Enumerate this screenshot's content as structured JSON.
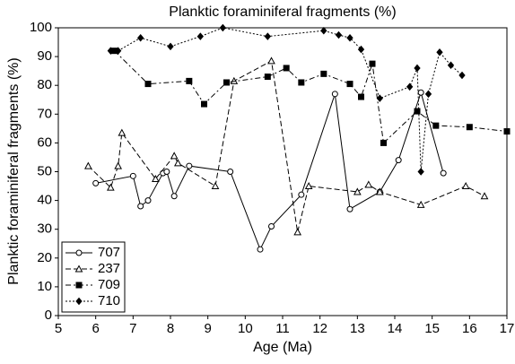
{
  "chart_data": {
    "type": "line",
    "title": "Planktic foraminiferal fragments (%)",
    "x_label": "Age (Ma)",
    "y_label": "Planktic foraminiferal fragments (%)",
    "xlim": [
      5,
      17
    ],
    "xticks": [
      5,
      6,
      7,
      8,
      9,
      10,
      11,
      12,
      13,
      14,
      15,
      16,
      17
    ],
    "ylim": [
      0,
      100
    ],
    "yticks": [
      0,
      10,
      20,
      30,
      40,
      50,
      60,
      70,
      80,
      90,
      100
    ],
    "legend": "lower left",
    "series": [
      {
        "name": "707",
        "color": "#000000",
        "marker": "circle",
        "dash": "solid",
        "x": [
          6.0,
          7.0,
          7.2,
          7.4,
          7.8,
          7.9,
          8.1,
          8.5,
          9.6,
          10.4,
          10.7,
          11.5,
          12.4,
          12.8,
          13.6,
          14.1,
          14.7,
          15.3
        ],
        "values": [
          46,
          48.5,
          38,
          40,
          49.5,
          50,
          41.5,
          52,
          50,
          23,
          31,
          42,
          77,
          37,
          43,
          54,
          77.5,
          49.5
        ]
      },
      {
        "name": "237",
        "color": "#000000",
        "marker": "triangle",
        "dash": "dashed",
        "x": [
          5.8,
          6.4,
          6.6,
          6.7,
          7.6,
          8.1,
          8.2,
          9.2,
          9.7,
          10.7,
          11.4,
          11.7,
          13.0,
          13.3,
          13.6,
          14.7,
          15.9,
          16.4
        ],
        "values": [
          52,
          44.5,
          52,
          63.5,
          47.5,
          55.5,
          53,
          45,
          81.5,
          88.5,
          29,
          45,
          43,
          45.5,
          43,
          38.5,
          45,
          41.5
        ]
      },
      {
        "name": "709",
        "color": "#000000",
        "marker": "square",
        "dash": "dashdot",
        "x": [
          6.5,
          7.4,
          8.5,
          8.9,
          9.5,
          10.6,
          11.1,
          11.5,
          12.1,
          12.8,
          13.1,
          13.4,
          13.7,
          14.6,
          15.1,
          16.0,
          17.0
        ],
        "values": [
          92,
          80.5,
          81.5,
          73.5,
          81,
          83,
          86,
          81,
          84,
          80.5,
          76,
          87.5,
          60,
          71,
          66,
          65.5,
          64
        ]
      },
      {
        "name": "710",
        "color": "#000000",
        "marker": "diamond",
        "dash": "dotted",
        "x": [
          6.4,
          6.6,
          7.2,
          8.0,
          8.8,
          9.4,
          10.6,
          12.1,
          12.5,
          12.8,
          13.1,
          13.6,
          14.4,
          14.6,
          14.7,
          14.9,
          15.2,
          15.5,
          15.8
        ],
        "values": [
          92,
          92,
          96.5,
          93.5,
          97,
          100,
          97,
          99,
          97.5,
          96.5,
          92.5,
          75.5,
          79.5,
          86,
          50,
          77,
          91.5,
          87,
          83.5
        ]
      }
    ]
  }
}
